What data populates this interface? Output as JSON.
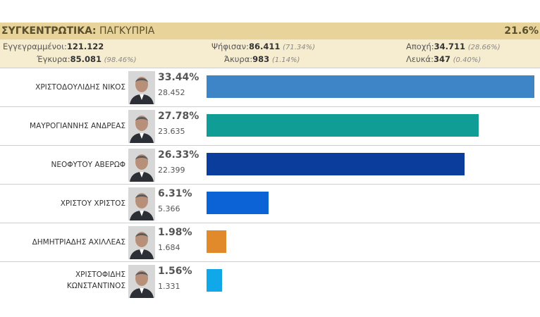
{
  "header": {
    "title_bold": "ΣΥΓΚΕΝΤΡΩΤΙΚΑ:",
    "title_rest": "ΠΑΓΚΥΠΡΙΑ",
    "turnout": "21.6%"
  },
  "stats": {
    "registered": {
      "label": "Εγγεγραμμένοι:",
      "value": "121.122"
    },
    "voted": {
      "label": "Ψήφισαν:",
      "value": "86.411",
      "pct": "(71.34%)"
    },
    "abstained": {
      "label": "Αποχή:",
      "value": "34.711",
      "pct": "(28.66%)"
    },
    "valid": {
      "label": "Έγκυρα:",
      "value": "85.081",
      "pct": "(98.46%)"
    },
    "invalid": {
      "label": "Άκυρα:",
      "value": "983",
      "pct": "(1.14%)"
    },
    "blank": {
      "label": "Λευκά:",
      "value": "347",
      "pct": "(0.40%)"
    }
  },
  "chart_data": {
    "type": "bar",
    "orientation": "horizontal",
    "categories": [
      "ΧΡΙΣΤΟΔΟΥΛΙΔΗΣ ΝΙΚΟΣ",
      "ΜΑΥΡΟΓΙΑΝΝΗΣ ΑΝΔΡΕΑΣ",
      "ΝΕΟΦΥΤΟΥ ΑΒΕΡΩΦ",
      "ΧΡΙΣΤΟΥ ΧΡΙΣΤΟΣ",
      "ΔΗΜΗΤΡΙΑΔΗΣ ΑΧΙΛΛΕΑΣ",
      "ΧΡΙΣΤΟΦΙΔΗΣ ΚΩΝΣΤΑΝΤΙΝΟΣ"
    ],
    "values": [
      33.44,
      27.78,
      26.33,
      6.31,
      1.98,
      1.56
    ],
    "percent_labels": [
      "33.44%",
      "27.78%",
      "26.33%",
      "6.31%",
      "1.98%",
      "1.56%"
    ],
    "vote_labels": [
      "28.452",
      "23.635",
      "22.399",
      "5.366",
      "1.684",
      "1.331"
    ],
    "name_lines": [
      [
        "ΧΡΙΣΤΟΔΟΥΛΙΔΗΣ ΝΙΚΟΣ"
      ],
      [
        "ΜΑΥΡΟΓΙΑΝΝΗΣ ΑΝΔΡΕΑΣ"
      ],
      [
        "ΝΕΟΦΥΤΟΥ ΑΒΕΡΩΦ"
      ],
      [
        "ΧΡΙΣΤΟΥ ΧΡΙΣΤΟΣ"
      ],
      [
        "ΔΗΜΗΤΡΙΑΔΗΣ ΑΧΙΛΛΕΑΣ"
      ],
      [
        "ΧΡΙΣΤΟΦΙΔΗΣ",
        "ΚΩΝΣΤΑΝΤΙΝΟΣ"
      ]
    ],
    "colors": [
      "#3d85c6",
      "#0f9d96",
      "#0a3d9c",
      "#0b63d6",
      "#e08a2c",
      "#10a8e8"
    ],
    "photo_icons": [
      "candidate-photo",
      "candidate-photo",
      "candidate-photo",
      "candidate-photo",
      "candidate-photo",
      "candidate-photo"
    ],
    "xlim": [
      0,
      33.44
    ],
    "grid": false,
    "legend": "none"
  }
}
